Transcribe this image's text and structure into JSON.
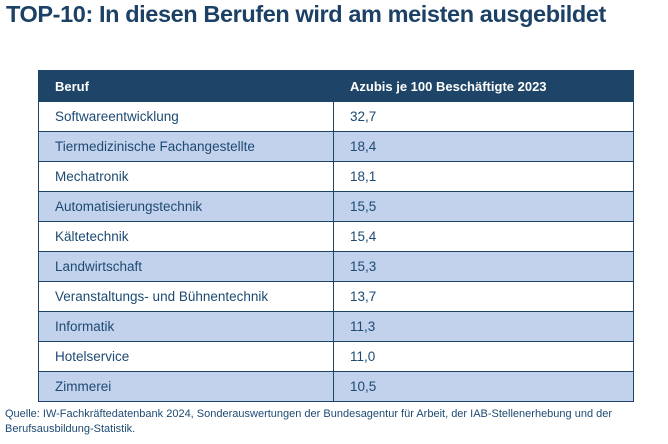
{
  "title": "TOP-10: In diesen Berufen wird am meisten ausgebildet",
  "table": {
    "columns": [
      "Beruf",
      "Azubis je 100 Beschäftigte 2023"
    ],
    "rows": [
      {
        "beruf": "Softwareentwicklung",
        "value": "32,7"
      },
      {
        "beruf": "Tiermedizinische Fachangestellte",
        "value": "18,4"
      },
      {
        "beruf": "Mechatronik",
        "value": "18,1"
      },
      {
        "beruf": "Automatisierungstechnik",
        "value": "15,5"
      },
      {
        "beruf": "Kältetechnik",
        "value": "15,4"
      },
      {
        "beruf": "Landwirtschaft",
        "value": "15,3"
      },
      {
        "beruf": "Veranstaltungs- und Bühnentechnik",
        "value": "13,7"
      },
      {
        "beruf": "Informatik",
        "value": "11,3"
      },
      {
        "beruf": "Hotelservice",
        "value": "11,0"
      },
      {
        "beruf": "Zimmerei",
        "value": "10,5"
      }
    ]
  },
  "source": "Quelle: IW-Fachkräftedatenbank 2024, Sonderauswertungen der Bundesagentur für Arbeit, der IAB-Stellenerhebung und der Berufsausbildung-Statistik.",
  "colors": {
    "header_bg": "#1e4567",
    "header_text": "#ffffff",
    "row_alt_bg": "#c2d1ec",
    "row_bg": "#ffffff",
    "text": "#1d4a73",
    "title": "#1c4166",
    "border": "#1e4567"
  },
  "chart_data": {
    "type": "table",
    "title": "TOP-10: In diesen Berufen wird am meisten ausgebildet",
    "columns": [
      "Beruf",
      "Azubis je 100 Beschäftigte 2023"
    ],
    "rows": [
      [
        "Softwareentwicklung",
        32.7
      ],
      [
        "Tiermedizinische Fachangestellte",
        18.4
      ],
      [
        "Mechatronik",
        18.1
      ],
      [
        "Automatisierungstechnik",
        15.5
      ],
      [
        "Kältetechnik",
        15.4
      ],
      [
        "Landwirtschaft",
        15.3
      ],
      [
        "Veranstaltungs- und Bühnentechnik",
        13.7
      ],
      [
        "Informatik",
        11.3
      ],
      [
        "Hotelservice",
        11.0
      ],
      [
        "Zimmerei",
        10.5
      ]
    ],
    "source": "Quelle: IW-Fachkräftedatenbank 2024, Sonderauswertungen der Bundesagentur für Arbeit, der IAB-Stellenerhebung und der Berufsausbildung-Statistik."
  }
}
